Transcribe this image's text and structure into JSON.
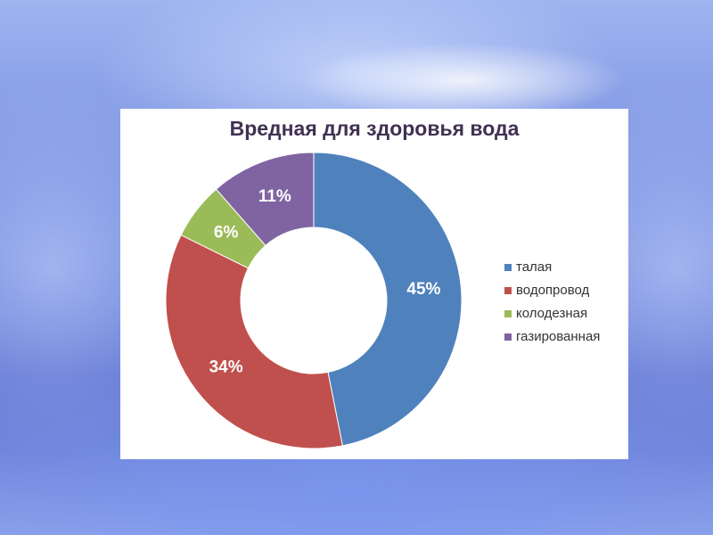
{
  "chart_data": {
    "type": "donut",
    "title": "Вредная для здоровья вода",
    "categories": [
      "талая",
      "водопровод",
      "колодезная",
      "газированная"
    ],
    "values": [
      45,
      34,
      6,
      11
    ],
    "value_labels": [
      "45%",
      "34%",
      "6%",
      "11%"
    ],
    "colors": [
      "#4f81bd",
      "#c0504d",
      "#9bbb59",
      "#8064a2"
    ],
    "legend": "right"
  }
}
